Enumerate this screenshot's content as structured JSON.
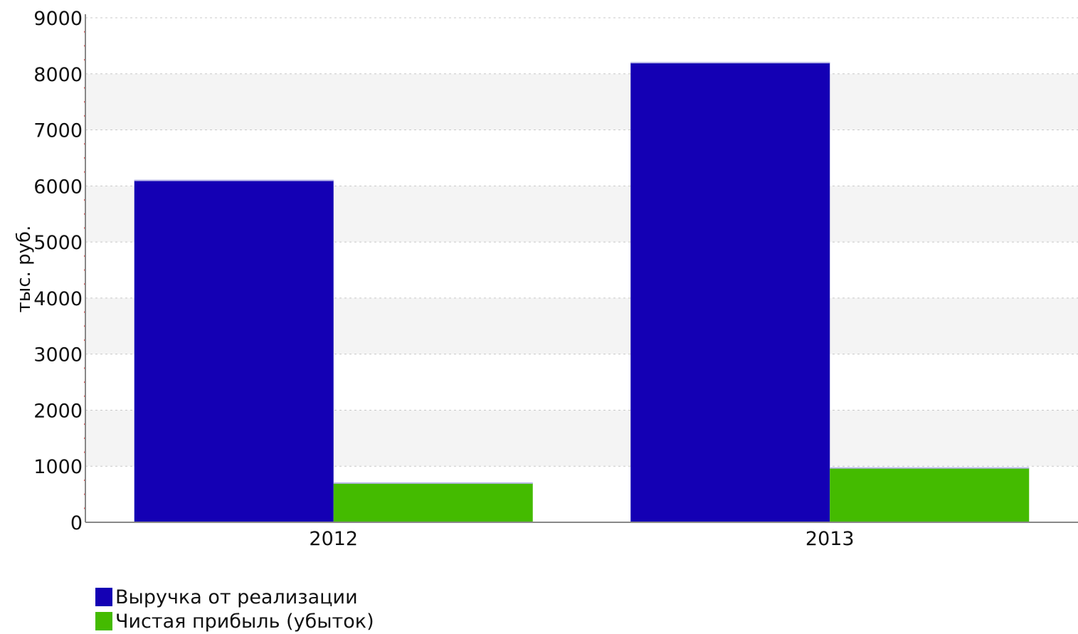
{
  "chart_data": {
    "type": "bar",
    "categories": [
      "2012",
      "2013"
    ],
    "series": [
      {
        "name": "Выручка от реализации",
        "values": [
          6100,
          8200
        ],
        "color": "#1400b4"
      },
      {
        "name": "Чистая прибыль (убыток)",
        "values": [
          700,
          970
        ],
        "color": "#44bb00"
      }
    ],
    "title": "",
    "xlabel": "",
    "ylabel": "тыс. руб.",
    "ylim": [
      0,
      9000
    ],
    "yticks": [
      "0",
      "1000",
      "2000",
      "3000",
      "4000",
      "5000",
      "6000",
      "7000",
      "8000",
      "9000"
    ],
    "grid": true,
    "legend_position": "bottom-left"
  }
}
